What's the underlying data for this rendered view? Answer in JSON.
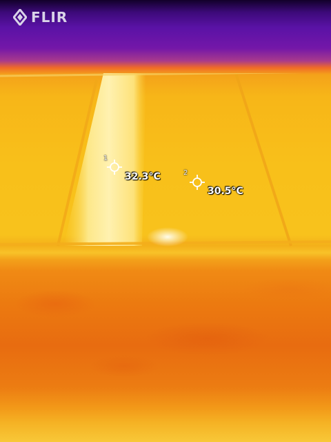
{
  "brand": {
    "logo_text": "FLIR"
  },
  "spots": [
    {
      "index": "1",
      "temperature": "32.3°C"
    },
    {
      "index": "2",
      "temperature": "30.5°C"
    }
  ],
  "palette": {
    "hot": "#fff6c8",
    "warm": "#f8c01a",
    "mid": "#ec7a10",
    "cool": "#5a12a6",
    "cold": "#12002a"
  }
}
